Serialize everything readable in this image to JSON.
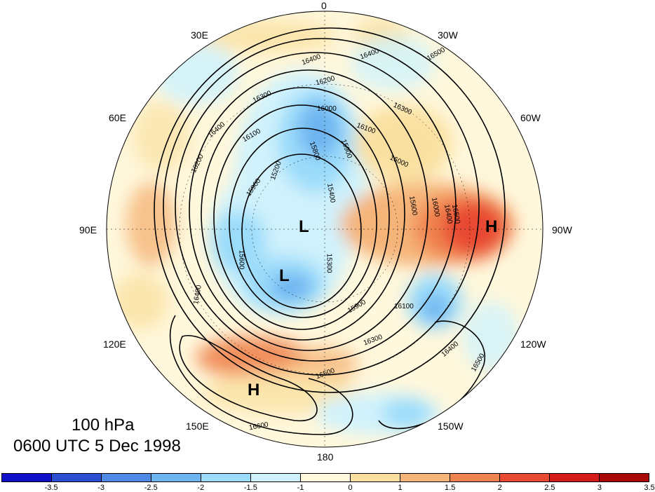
{
  "map": {
    "title_level": "100 hPa",
    "title_time": "0600 UTC 5 Dec 1998",
    "longitude_labels": {
      "lon_0": "0",
      "lon_30w": "30W",
      "lon_60w": "60W",
      "lon_90w": "90W",
      "lon_120w": "120W",
      "lon_150w": "150W",
      "lon_180": "180",
      "lon_150e": "150E",
      "lon_120e": "120E",
      "lon_90e": "90E",
      "lon_60e": "60E",
      "lon_30e": "30E"
    },
    "pressure_centers": {
      "low_1": "L",
      "low_2": "L",
      "high_1": "H",
      "high_2": "H"
    },
    "contour_labels": [
      "16500",
      "16400",
      "16400",
      "16200",
      "16300",
      "16000",
      "16300",
      "16100",
      "16100",
      "16000",
      "16400",
      "16200",
      "15900",
      "15800",
      "15900",
      "15600",
      "15200",
      "15400",
      "16000",
      "15300",
      "15600",
      "16400",
      "15900",
      "16100",
      "16300",
      "16500",
      "16400",
      "16500",
      "16600",
      "16400",
      "16500"
    ],
    "colorbar": {
      "colors": [
        "#1010c8",
        "#2d4ecf",
        "#4f8be6",
        "#6db4f0",
        "#9bdcfa",
        "#d0f2fc",
        "#fff8dc",
        "#fae0a0",
        "#f5b478",
        "#f08450",
        "#e84a32",
        "#d41c1c",
        "#a80808"
      ],
      "tick_labels": [
        "-3.5",
        "-3",
        "-2.5",
        "-2",
        "-1.5",
        "-1",
        "0",
        "1",
        "1.5",
        "2",
        "2.5",
        "3",
        "3.5"
      ]
    }
  }
}
